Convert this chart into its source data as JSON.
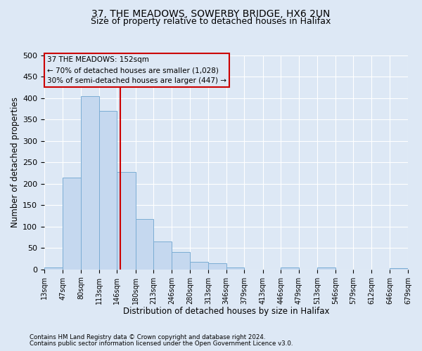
{
  "title1": "37, THE MEADOWS, SOWERBY BRIDGE, HX6 2UN",
  "title2": "Size of property relative to detached houses in Halifax",
  "xlabel": "Distribution of detached houses by size in Halifax",
  "ylabel": "Number of detached properties",
  "footnote1": "Contains HM Land Registry data © Crown copyright and database right 2024.",
  "footnote2": "Contains public sector information licensed under the Open Government Licence v3.0.",
  "annotation_line1": "37 THE MEADOWS: 152sqm",
  "annotation_line2": "← 70% of detached houses are smaller (1,028)",
  "annotation_line3": "30% of semi-detached houses are larger (447) →",
  "bar_left_edges": [
    13,
    47,
    80,
    113,
    146,
    180,
    213,
    246,
    280,
    313,
    346,
    379,
    413,
    446,
    479,
    513,
    546,
    579,
    612,
    646
  ],
  "bar_widths": [
    34,
    33,
    33,
    33,
    34,
    33,
    33,
    34,
    33,
    33,
    33,
    34,
    33,
    33,
    33,
    33,
    33,
    33,
    34,
    33
  ],
  "bar_heights": [
    5,
    215,
    405,
    370,
    228,
    118,
    65,
    40,
    18,
    15,
    5,
    0,
    0,
    5,
    0,
    5,
    0,
    0,
    0,
    3
  ],
  "bar_color": "#c5d8ef",
  "bar_edge_color": "#7badd4",
  "vline_color": "#cc0000",
  "vline_x": 152,
  "ylim": [
    0,
    500
  ],
  "yticks": [
    0,
    50,
    100,
    150,
    200,
    250,
    300,
    350,
    400,
    450,
    500
  ],
  "xlim": [
    13,
    679
  ],
  "xtick_labels": [
    "13sqm",
    "47sqm",
    "80sqm",
    "113sqm",
    "146sqm",
    "180sqm",
    "213sqm",
    "246sqm",
    "280sqm",
    "313sqm",
    "346sqm",
    "379sqm",
    "413sqm",
    "446sqm",
    "479sqm",
    "513sqm",
    "546sqm",
    "579sqm",
    "612sqm",
    "646sqm",
    "679sqm"
  ],
  "xtick_positions": [
    13,
    47,
    80,
    113,
    146,
    180,
    213,
    246,
    280,
    313,
    346,
    379,
    413,
    446,
    479,
    513,
    546,
    579,
    612,
    646,
    679
  ],
  "background_color": "#dde8f5",
  "plot_bg_color": "#dde8f5",
  "grid_color": "#ffffff",
  "annotation_box_facecolor": "#dde8f5",
  "annotation_box_edgecolor": "#cc0000",
  "title1_fontsize": 10,
  "title2_fontsize": 9,
  "xlabel_fontsize": 8.5,
  "ylabel_fontsize": 8.5,
  "tick_fontsize": 8,
  "xtick_fontsize": 7
}
